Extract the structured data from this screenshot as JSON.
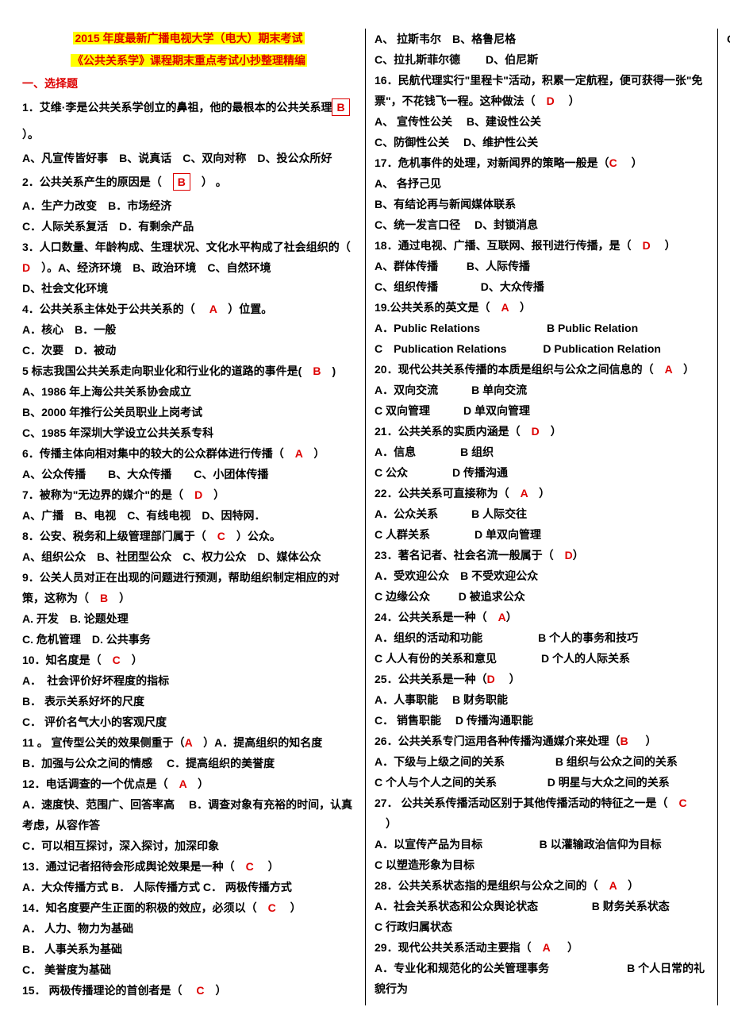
{
  "header1": "2015 年度最新广播电视大学（电大）期末考试",
  "header2": "《公共关系学》课程期末重点考试小抄整理精编",
  "section1": "一、选择题",
  "questions": [
    {
      "n": "1",
      "t1": "．艾维·李是公共关系学创立的鼻祖，他的最根本的公共关系理",
      "t2": "念是（",
      "ans": "B",
      "boxed": true,
      "t3": "）。",
      "opts": "A、凡宣传皆好事　B、说真话　C、双向对称　D、投公众所好",
      "extra_gap": true
    },
    {
      "n": "2",
      "t1": "．公共关系产生的原因是（　",
      "ans": "B",
      "boxed": true,
      "t3": "　） 。",
      "opts": "A．生产力改变　B．市场经济\n C．人际关系复活　D．有剩余产品",
      "extra_gap": true
    },
    {
      "n": "3",
      "t1": "．人口数量、年龄构成、生理状况、文化水平构成了社会组织的（　",
      "ans": "D",
      "t3": "　）。A、经济环境　B、政治环境　C、自然环境",
      "opts": "D、社会文化环境"
    },
    {
      "n": "4",
      "t1": "．公共关系主体处于公共关系的（ 　",
      "ans": "A",
      "t3": "　）位置。",
      "opts": "A．核心　B．一般\n C．次要　D．被动"
    },
    {
      "n": "5",
      "t1": " 标志我国公共关系走向职业化和行业化的道路的事件是(　",
      "ans": "B",
      "t3": "　)",
      "opts": "A、1986 年上海公共关系协会成立\nB、2000 年推行公关员职业上岗考试\nC、1985 年深圳大学设立公共关系专科"
    },
    {
      "n": "6",
      "t1": "．传播主体向相对集中的较大的公众群体进行传播（　",
      "ans": "A",
      "t3": "　）",
      "opts": "A、公众传播　　B、大众传播　　C、小团体传播"
    },
    {
      "n": "7",
      "t1": "．被称为\"无边界的媒介\"的是（　",
      "ans": "D",
      "t3": "　）",
      "opts": "A、广播　B、电视　C、有线电视　D、因特网．"
    },
    {
      "n": "8",
      "t1": "．公安、税务和上级管理部门属于（　",
      "ans": "C",
      "t3": "　）公众。",
      "opts": "A、组织公众　B、社团型公众　C、权力公众　D、媒体公众"
    },
    {
      "n": "9",
      "t1": "．公关人员对正在出现的问题进行预测，帮助组织制定相应的对策，这称为（　",
      "ans": "B",
      "t3": "　）",
      "opts": "A. 开发　B. 论题处理\nC. 危机管理　D. 公共事务"
    },
    {
      "n": "10",
      "t1": "．知名度是（　",
      "ans": "C",
      "t3": "　）",
      "opts": "A．　社会评价好坏程度的指标\nB． 表示关系好坏的尺度\nC． 评价名气大小的客观尺度"
    },
    {
      "n": "11",
      "t1": " 。 宣传型公关的效果侧重于（",
      "ans": "A",
      "t3": "　）A．提高组织的知名度",
      "opts": "B．加强与公众之间的情感　  C．提高组织的美誉度"
    },
    {
      "n": "12",
      "t1": "．电话调查的一个优点是（　",
      "ans": "A",
      "t3": "　）",
      "opts": "A．速度快、范围广、回答率高　  B．调查对象有充裕的时间，认真考虑，从容作答\nC．可以相互探讨，深入探讨，加深印象"
    },
    {
      "n": "13",
      "t1": "．通过记者招待会形成舆论效果是一种（　",
      "ans": "C",
      "t3": "　 ）",
      "opts": "A．大众传播方式 B．  人际传播方式 C． 两极传播方式"
    },
    {
      "n": "14",
      "t1": "．知名度要产生正面的积极的效应，必须以（　",
      "ans": "C",
      "t3": "　 ）",
      "opts": "A． 人力、物力为基础\nB． 人事关系为基础\nC． 美誉度为基础"
    },
    {
      "n": "15",
      "t1": "． 两极传播理论的首创者是（ 　",
      "ans": "C",
      "t3": "　）",
      "opts": "A、 拉斯韦尔　B、格鲁尼格\nC、拉扎斯菲尔德　　 D、伯尼斯"
    },
    {
      "n": "16",
      "t1": "．民航代理实行\"里程卡\"活动，积累一定航程，便可获得一张\"免票\"，不花钱飞一程。这种做法（　",
      "ans": "D",
      "t3": "　 ）",
      "opts": "A、 宣传性公关　  B、建设性公关\nC、防御性公关　  D、维护性公关"
    },
    {
      "n": "17",
      "t1": "．危机事件的处理，对新闻界的策略一般是（",
      "ans": "C",
      "t3": "　 ）",
      "opts": "A、 各抒己见\nB、有结论再与新闻媒体联系\nC、统一发言口径　  D、封锁消息"
    },
    {
      "n": "18",
      "t1": "．通过电视、广播、互联网、报刊进行传播，是（　",
      "ans": "D",
      "t3": "　 ）",
      "opts": "A、群体传播　 　   B、人际传播\nC、组织传播　   　 　 D、大众传播"
    },
    {
      "n": "19",
      "t1": ".公共关系的英文是（　",
      "ans": "A",
      "t3": "　）",
      "opts": "A．Public Relations　　　　　　B Public Relation\nC　Publication Relations　　　 D Publication Relation"
    },
    {
      "n": "20",
      "t1": "．现代公共关系传播的本质是组织与公众之间信息的（　",
      "ans": "A",
      "t3": "　）",
      "opts": "A．双向交流　　　B 单向交流\nC 双向管理　　　D 单双向管理"
    },
    {
      "n": "21",
      "t1": "．公共关系的实质内涵是（　",
      "ans": "D",
      "t3": "　）",
      "opts": "A．信息　　　　B 组织\nC 公众　　　　D 传播沟通"
    },
    {
      "n": "22",
      "t1": "．公共关系可直接称为（　",
      "ans": "A",
      "t3": "　）",
      "opts": "A．公众关系　　　B 人际交往\nC 人群关系　　　　D 单双向管理"
    },
    {
      "n": "23",
      "t1": "．著名记者、社会名流一般属于（　",
      "ans": "D",
      "t3": "）",
      "opts": "A．受欢迎公众　B 不受欢迎公众\nC 边缘公众　 　 D 被追求公众"
    },
    {
      "n": "24",
      "t1": "．公共关系是一种（　",
      "ans": "A",
      "t3": "）",
      "opts": "A．组织的活动和功能　　　　　B 个人的事务和技巧\nC 人人有份的关系和意见　　　　D 个人的人际关系"
    },
    {
      "n": "25",
      "t1": "．公共关系是一种（",
      "ans": "D",
      "t3": "　 ）",
      "opts": "A．人事职能　   B 财务职能\nC．  销售职能　   D 传播沟通职能"
    },
    {
      "n": "26",
      "t1": "．公共关系专门运用各种传播沟通媒介来处理（",
      "ans": "B",
      "t3": "  　 ）",
      "opts": "A．下级与上级之间的关系　　　   　 B 组织与公众之间的关系\nC 个人与个人之间的关系　　　   　 D 明星与大众之间的关系"
    },
    {
      "n": "27",
      "t1": "． 公共关系传播活动区别于其他传播活动的特征之一是（　",
      "ans": "C",
      "t3": "　）",
      "opts": "A．以宣传产品为目标　  　 　 　 B 以灌输政治信仰为目标\nC 以塑造形象为目标"
    },
    {
      "n": "28",
      "t1": "．公共关系状态指的是组织与公众之间的（　",
      "ans": "A",
      "t3": "　）",
      "opts": "A．社会关系状态和公众舆论状态　　  　  　 B 财务关系状态\nC 行政归属状态"
    },
    {
      "n": "29",
      "t1": "．现代公共关系活动主要指（　",
      "ans": "A",
      "t3": "  　  ）",
      "opts": "A．专业化和规范化的公关管理事务　　　　　　　B 个人日常的礼貌行为\nC 自古以来就存在的传播行为"
    }
  ]
}
